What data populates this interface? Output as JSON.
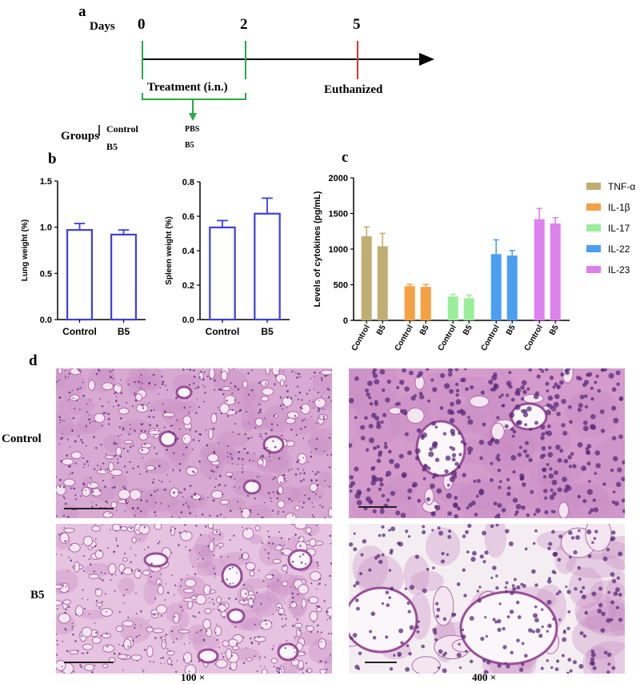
{
  "panel_a": {
    "letter": "a",
    "days_label": "Days",
    "day_ticks": [
      "0",
      "2",
      "5"
    ],
    "treatment_label": "Treatment (i.n.)",
    "euthanized_label": "Euthanized",
    "groups_label": "Groups",
    "groups": [
      {
        "name": "Control",
        "treatment": "PBS"
      },
      {
        "name": "B5",
        "treatment": "B5"
      }
    ],
    "colors": {
      "green": "#2aa84a",
      "red": "#e0303a",
      "arrow": "#000000"
    }
  },
  "panel_b": {
    "letter": "b"
  },
  "panel_c": {
    "letter": "c"
  },
  "panel_d": {
    "letter": "d",
    "row_labels": [
      "Control",
      "B5"
    ],
    "col_labels": [
      "100 ×",
      "400 ×"
    ],
    "stain_colors": {
      "background": "#f3e6f0",
      "tissue": "#c98dc4",
      "nuclei": "#5a2a7a"
    }
  },
  "chart_data": [
    {
      "type": "bar",
      "categories": [
        "Control",
        "B5"
      ],
      "values": [
        0.97,
        0.92
      ],
      "errors": [
        0.07,
        0.05
      ],
      "ylabel": "Lung weight (%)",
      "ylim": [
        0,
        1.5
      ],
      "yticks": [
        "0.0",
        "0.5",
        "1.0",
        "1.5"
      ],
      "color": "#3f3fe0"
    },
    {
      "type": "bar",
      "categories": [
        "Control",
        "B5"
      ],
      "values": [
        0.535,
        0.615
      ],
      "errors": [
        0.04,
        0.09
      ],
      "ylabel": "Spleen weight (%)",
      "ylim": [
        0,
        0.8
      ],
      "yticks": [
        "0.0",
        "0.2",
        "0.4",
        "0.6",
        "0.8"
      ],
      "color": "#3f3fe0"
    },
    {
      "type": "bar",
      "categories": [
        "Control",
        "B5"
      ],
      "ylabel": "Levels of cytokines (pg/mL)",
      "ylim": [
        0,
        2000
      ],
      "yticks": [
        "0",
        "500",
        "1000",
        "1500",
        "2000"
      ],
      "legend_position": "right",
      "series": [
        {
          "name": "TNF-α",
          "values": [
            1180,
            1040
          ],
          "errors": [
            130,
            180
          ],
          "color": "#bfae72"
        },
        {
          "name": "IL-1β",
          "values": [
            480,
            470
          ],
          "errors": [
            25,
            35
          ],
          "color": "#f5a043"
        },
        {
          "name": "IL-17",
          "values": [
            335,
            310
          ],
          "errors": [
            30,
            45
          ],
          "color": "#99ee99"
        },
        {
          "name": "IL-22",
          "values": [
            930,
            910
          ],
          "errors": [
            200,
            70
          ],
          "color": "#4c9ef0"
        },
        {
          "name": "IL-23",
          "values": [
            1420,
            1360
          ],
          "errors": [
            150,
            80
          ],
          "color": "#dd80ee"
        }
      ]
    }
  ]
}
